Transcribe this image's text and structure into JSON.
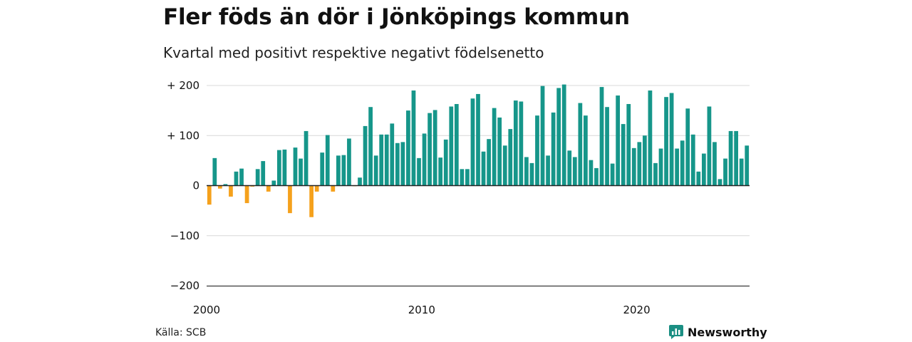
{
  "title": "Fler föds än dör i Jönköpings kommun",
  "subtitle": "Kvartal med positivt respektive negativt födelsenetto",
  "source": "Källa: SCB",
  "brand": {
    "name": "Newsworthy",
    "icon": "newsworthy-chart-logo-icon"
  },
  "colors": {
    "positive": "#16968a",
    "negative": "#f5a11c",
    "axis": "#222222",
    "grid": "#d8d8d8",
    "brand": "#1b8f83"
  },
  "chart_data": {
    "type": "bar",
    "x_start": "2000 Q1",
    "x_ticks": [
      "2000",
      "2010",
      "2020"
    ],
    "y_ticks": [
      "−200",
      "−100",
      "0",
      "+ 100",
      "+ 200"
    ],
    "ylim": [
      -200,
      200
    ],
    "grid": true,
    "values": [
      -38,
      55,
      -6,
      3,
      -22,
      28,
      34,
      -35,
      -2,
      33,
      49,
      -12,
      10,
      71,
      72,
      -55,
      76,
      54,
      109,
      -63,
      -12,
      66,
      101,
      -12,
      60,
      61,
      94,
      -1,
      16,
      119,
      157,
      60,
      102,
      102,
      124,
      85,
      87,
      150,
      190,
      55,
      104,
      145,
      151,
      56,
      92,
      158,
      163,
      33,
      33,
      174,
      183,
      68,
      93,
      155,
      136,
      80,
      113,
      170,
      168,
      57,
      45,
      140,
      199,
      60,
      146,
      195,
      202,
      70,
      57,
      165,
      140,
      51,
      35,
      197,
      157,
      44,
      180,
      123,
      163,
      75,
      87,
      100,
      190,
      45,
      74,
      177,
      185,
      74,
      90,
      154,
      102,
      28,
      64,
      158,
      87,
      13,
      54,
      109,
      109,
      54,
      80
    ]
  }
}
